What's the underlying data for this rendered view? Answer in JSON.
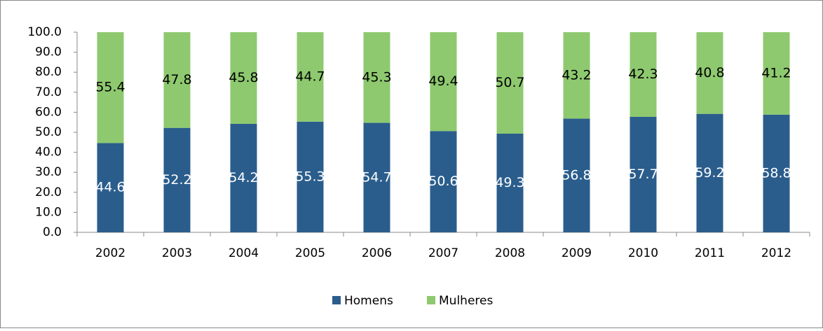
{
  "chart_data": {
    "type": "stacked_bar",
    "categories": [
      "2002",
      "2003",
      "2004",
      "2005",
      "2006",
      "2007",
      "2008",
      "2009",
      "2010",
      "2011",
      "2012"
    ],
    "series": [
      {
        "name": "Homens",
        "color": "#2a5d8c",
        "values": [
          44.6,
          52.2,
          54.2,
          55.3,
          54.7,
          50.6,
          49.3,
          56.8,
          57.7,
          59.2,
          58.8
        ]
      },
      {
        "name": "Mulheres",
        "color": "#8ec96f",
        "values": [
          55.4,
          47.8,
          45.8,
          44.7,
          45.3,
          49.4,
          50.7,
          43.2,
          42.3,
          40.8,
          41.2
        ]
      }
    ],
    "ylim": [
      0,
      100
    ],
    "yticks": [
      {
        "value": 0,
        "label": "0.0"
      },
      {
        "value": 10,
        "label": "10.0"
      },
      {
        "value": 20,
        "label": "20.0"
      },
      {
        "value": 30,
        "label": "30.0"
      },
      {
        "value": 40,
        "label": "40.0"
      },
      {
        "value": 50,
        "label": "50.0"
      },
      {
        "value": 60,
        "label": "60.0"
      },
      {
        "value": 70,
        "label": "70.0"
      },
      {
        "value": 80,
        "label": "80.0"
      },
      {
        "value": 90,
        "label": "90.0"
      },
      {
        "value": 100,
        "label": "100.0"
      }
    ],
    "grid": false,
    "legend": "bottom"
  }
}
